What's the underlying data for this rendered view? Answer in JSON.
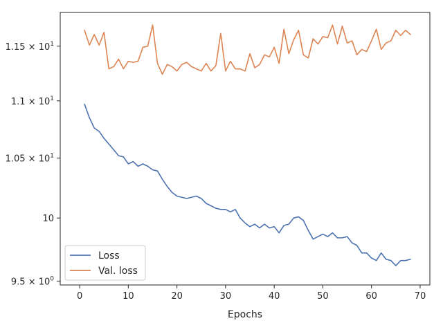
{
  "chart_data": {
    "type": "line",
    "xlabel": "Epochs",
    "ylabel": "",
    "xlim": [
      -4,
      72
    ],
    "ylim": [
      9.47,
      11.82
    ],
    "y_scale": "log",
    "grid": false,
    "legend_position": "lower-left",
    "x_ticks": [
      0,
      10,
      20,
      30,
      40,
      50,
      60,
      70
    ],
    "y_ticks": [
      {
        "value": 9.5,
        "base": "9.5",
        "exp": "0"
      },
      {
        "value": 10,
        "base": "10",
        "exp": ""
      },
      {
        "value": 10.5,
        "base": "1.05",
        "exp": "1"
      },
      {
        "value": 11,
        "base": "1.1",
        "exp": "1"
      },
      {
        "value": 11.5,
        "base": "1.15",
        "exp": "1"
      }
    ],
    "series": [
      {
        "name": "Loss",
        "color": "#4c72b0",
        "x": [
          1,
          2,
          3,
          4,
          5,
          6,
          7,
          8,
          9,
          10,
          11,
          12,
          13,
          14,
          15,
          16,
          17,
          18,
          19,
          20,
          21,
          22,
          23,
          24,
          25,
          26,
          27,
          28,
          29,
          30,
          31,
          32,
          33,
          34,
          35,
          36,
          37,
          38,
          39,
          40,
          41,
          42,
          43,
          44,
          45,
          46,
          47,
          48,
          49,
          50,
          51,
          52,
          53,
          54,
          55,
          56,
          57,
          58,
          59,
          60,
          61,
          62,
          63,
          64,
          65,
          66,
          67,
          68
        ],
        "values": [
          10.97,
          10.85,
          10.76,
          10.73,
          10.67,
          10.62,
          10.57,
          10.52,
          10.51,
          10.45,
          10.47,
          10.43,
          10.45,
          10.43,
          10.4,
          10.39,
          10.32,
          10.26,
          10.21,
          10.18,
          10.17,
          10.16,
          10.17,
          10.18,
          10.16,
          10.12,
          10.1,
          10.08,
          10.07,
          10.07,
          10.05,
          10.07,
          10.0,
          9.96,
          9.93,
          9.95,
          9.92,
          9.95,
          9.92,
          9.93,
          9.88,
          9.94,
          9.95,
          10.0,
          10.01,
          9.98,
          9.9,
          9.83,
          9.85,
          9.87,
          9.85,
          9.88,
          9.84,
          9.84,
          9.85,
          9.8,
          9.78,
          9.72,
          9.72,
          9.68,
          9.66,
          9.72,
          9.67,
          9.66,
          9.62,
          9.66,
          9.66,
          9.67
        ]
      },
      {
        "name": "Val. loss",
        "color": "#dd8452",
        "x": [
          1,
          2,
          3,
          4,
          5,
          6,
          7,
          8,
          9,
          10,
          11,
          12,
          13,
          14,
          15,
          16,
          17,
          18,
          19,
          20,
          21,
          22,
          23,
          24,
          25,
          26,
          27,
          28,
          29,
          30,
          31,
          32,
          33,
          34,
          35,
          36,
          37,
          38,
          39,
          40,
          41,
          42,
          43,
          44,
          45,
          46,
          47,
          48,
          49,
          50,
          51,
          52,
          53,
          54,
          55,
          56,
          57,
          58,
          59,
          60,
          61,
          62,
          63,
          64,
          65,
          66,
          67,
          68
        ],
        "values": [
          11.65,
          11.51,
          11.61,
          11.51,
          11.63,
          11.29,
          11.31,
          11.38,
          11.29,
          11.36,
          11.35,
          11.36,
          11.49,
          11.5,
          11.7,
          11.34,
          11.24,
          11.33,
          11.31,
          11.27,
          11.33,
          11.35,
          11.31,
          11.29,
          11.27,
          11.34,
          11.27,
          11.32,
          11.62,
          11.27,
          11.36,
          11.29,
          11.29,
          11.27,
          11.43,
          11.3,
          11.33,
          11.42,
          11.4,
          11.49,
          11.34,
          11.66,
          11.43,
          11.56,
          11.65,
          11.42,
          11.39,
          11.57,
          11.52,
          11.59,
          11.58,
          11.7,
          11.52,
          11.69,
          11.53,
          11.55,
          11.42,
          11.47,
          11.45,
          11.55,
          11.66,
          11.47,
          11.53,
          11.55,
          11.65,
          11.6,
          11.65,
          11.61
        ]
      }
    ]
  }
}
